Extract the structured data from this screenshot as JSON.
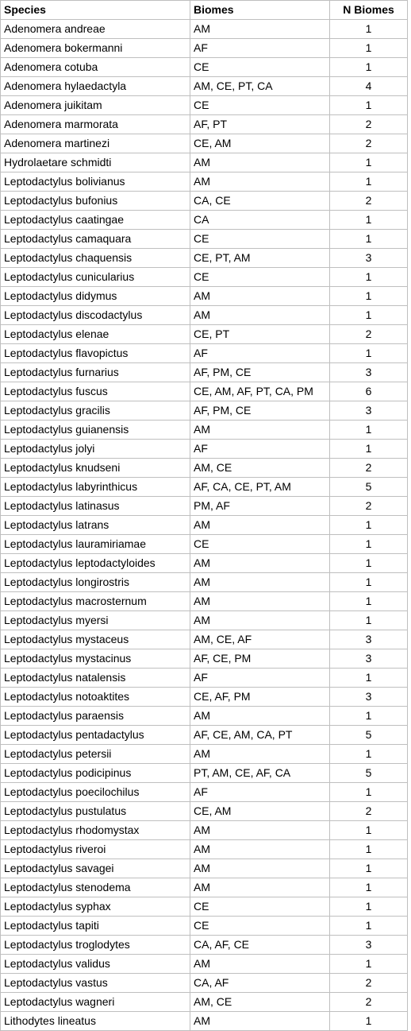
{
  "table": {
    "headers": {
      "species": "Species",
      "biomes": "Biomes",
      "n_biomes": "N Biomes"
    },
    "rows": [
      {
        "species": "Adenomera andreae",
        "biomes": "AM",
        "n": "1"
      },
      {
        "species": "Adenomera bokermanni",
        "biomes": "AF",
        "n": "1"
      },
      {
        "species": "Adenomera cotuba",
        "biomes": "CE",
        "n": "1"
      },
      {
        "species": "Adenomera hylaedactyla",
        "biomes": "AM, CE, PT,  CA",
        "n": "4"
      },
      {
        "species": "Adenomera juikitam",
        "biomes": "CE",
        "n": "1"
      },
      {
        "species": "Adenomera marmorata",
        "biomes": "AF, PT",
        "n": "2"
      },
      {
        "species": "Adenomera martinezi",
        "biomes": "CE, AM",
        "n": "2"
      },
      {
        "species": "Hydrolaetare schmidti",
        "biomes": "AM",
        "n": "1"
      },
      {
        "species": "Leptodactylus bolivianus",
        "biomes": "AM",
        "n": "1"
      },
      {
        "species": "Leptodactylus bufonius",
        "biomes": "CA, CE",
        "n": "2"
      },
      {
        "species": "Leptodactylus caatingae",
        "biomes": "CA",
        "n": "1"
      },
      {
        "species": "Leptodactylus camaquara",
        "biomes": "CE",
        "n": "1"
      },
      {
        "species": "Leptodactylus chaquensis",
        "biomes": "CE, PT, AM",
        "n": "3"
      },
      {
        "species": "Leptodactylus cunicularius",
        "biomes": "CE",
        "n": "1"
      },
      {
        "species": "Leptodactylus didymus",
        "biomes": "AM",
        "n": "1"
      },
      {
        "species": "Leptodactylus discodactylus",
        "biomes": "AM",
        "n": "1"
      },
      {
        "species": "Leptodactylus elenae",
        "biomes": "CE, PT",
        "n": "2"
      },
      {
        "species": "Leptodactylus flavopictus",
        "biomes": "AF",
        "n": "1"
      },
      {
        "species": "Leptodactylus furnarius",
        "biomes": "AF, PM, CE",
        "n": "3"
      },
      {
        "species": "Leptodactylus fuscus",
        "biomes": "CE, AM, AF, PT, CA, PM",
        "n": "6"
      },
      {
        "species": "Leptodactylus gracilis",
        "biomes": "AF, PM, CE",
        "n": "3"
      },
      {
        "species": "Leptodactylus guianensis",
        "biomes": "AM",
        "n": "1"
      },
      {
        "species": "Leptodactylus jolyi",
        "biomes": "AF",
        "n": "1"
      },
      {
        "species": "Leptodactylus knudseni",
        "biomes": "AM, CE",
        "n": "2"
      },
      {
        "species": "Leptodactylus labyrinthicus",
        "biomes": "AF, CA, CE, PT, AM",
        "n": "5"
      },
      {
        "species": "Leptodactylus latinasus",
        "biomes": "PM, AF",
        "n": "2"
      },
      {
        "species": "Leptodactylus latrans",
        "biomes": "AM",
        "n": "1"
      },
      {
        "species": "Leptodactylus lauramiriamae",
        "biomes": "CE",
        "n": "1"
      },
      {
        "species": "Leptodactylus leptodactyloides",
        "biomes": "AM",
        "n": "1"
      },
      {
        "species": "Leptodactylus longirostris",
        "biomes": "AM",
        "n": "1"
      },
      {
        "species": "Leptodactylus macrosternum",
        "biomes": "AM",
        "n": "1"
      },
      {
        "species": "Leptodactylus myersi",
        "biomes": "AM",
        "n": "1"
      },
      {
        "species": "Leptodactylus mystaceus",
        "biomes": "AM, CE, AF",
        "n": "3"
      },
      {
        "species": "Leptodactylus mystacinus",
        "biomes": "AF, CE, PM",
        "n": "3"
      },
      {
        "species": "Leptodactylus natalensis",
        "biomes": "AF",
        "n": "1"
      },
      {
        "species": "Leptodactylus notoaktites",
        "biomes": "CE, AF, PM",
        "n": "3"
      },
      {
        "species": "Leptodactylus paraensis",
        "biomes": "AM",
        "n": "1"
      },
      {
        "species": "Leptodactylus pentadactylus",
        "biomes": "AF, CE, AM, CA, PT",
        "n": "5"
      },
      {
        "species": "Leptodactylus petersii",
        "biomes": "AM",
        "n": "1"
      },
      {
        "species": "Leptodactylus podicipinus",
        "biomes": "PT, AM, CE, AF, CA",
        "n": "5"
      },
      {
        "species": "Leptodactylus poecilochilus",
        "biomes": "AF",
        "n": "1"
      },
      {
        "species": "Leptodactylus pustulatus",
        "biomes": "CE, AM",
        "n": "2"
      },
      {
        "species": "Leptodactylus rhodomystax",
        "biomes": "AM",
        "n": "1"
      },
      {
        "species": "Leptodactylus riveroi",
        "biomes": "AM",
        "n": "1"
      },
      {
        "species": "Leptodactylus savagei",
        "biomes": "AM",
        "n": "1"
      },
      {
        "species": "Leptodactylus stenodema",
        "biomes": "AM",
        "n": "1"
      },
      {
        "species": "Leptodactylus syphax",
        "biomes": "CE",
        "n": "1"
      },
      {
        "species": "Leptodactylus tapiti",
        "biomes": "CE",
        "n": "1"
      },
      {
        "species": "Leptodactylus troglodytes",
        "biomes": "CA, AF, CE",
        "n": "3"
      },
      {
        "species": "Leptodactylus validus",
        "biomes": "AM",
        "n": "1"
      },
      {
        "species": "Leptodactylus vastus",
        "biomes": "CA, AF",
        "n": "2"
      },
      {
        "species": "Leptodactylus wagneri",
        "biomes": "AM, CE",
        "n": "2"
      },
      {
        "species": "Lithodytes lineatus",
        "biomes": "AM",
        "n": "1"
      }
    ]
  },
  "colors": {
    "gridline": "#bfbfbf",
    "text": "#000000",
    "background": "#ffffff"
  }
}
